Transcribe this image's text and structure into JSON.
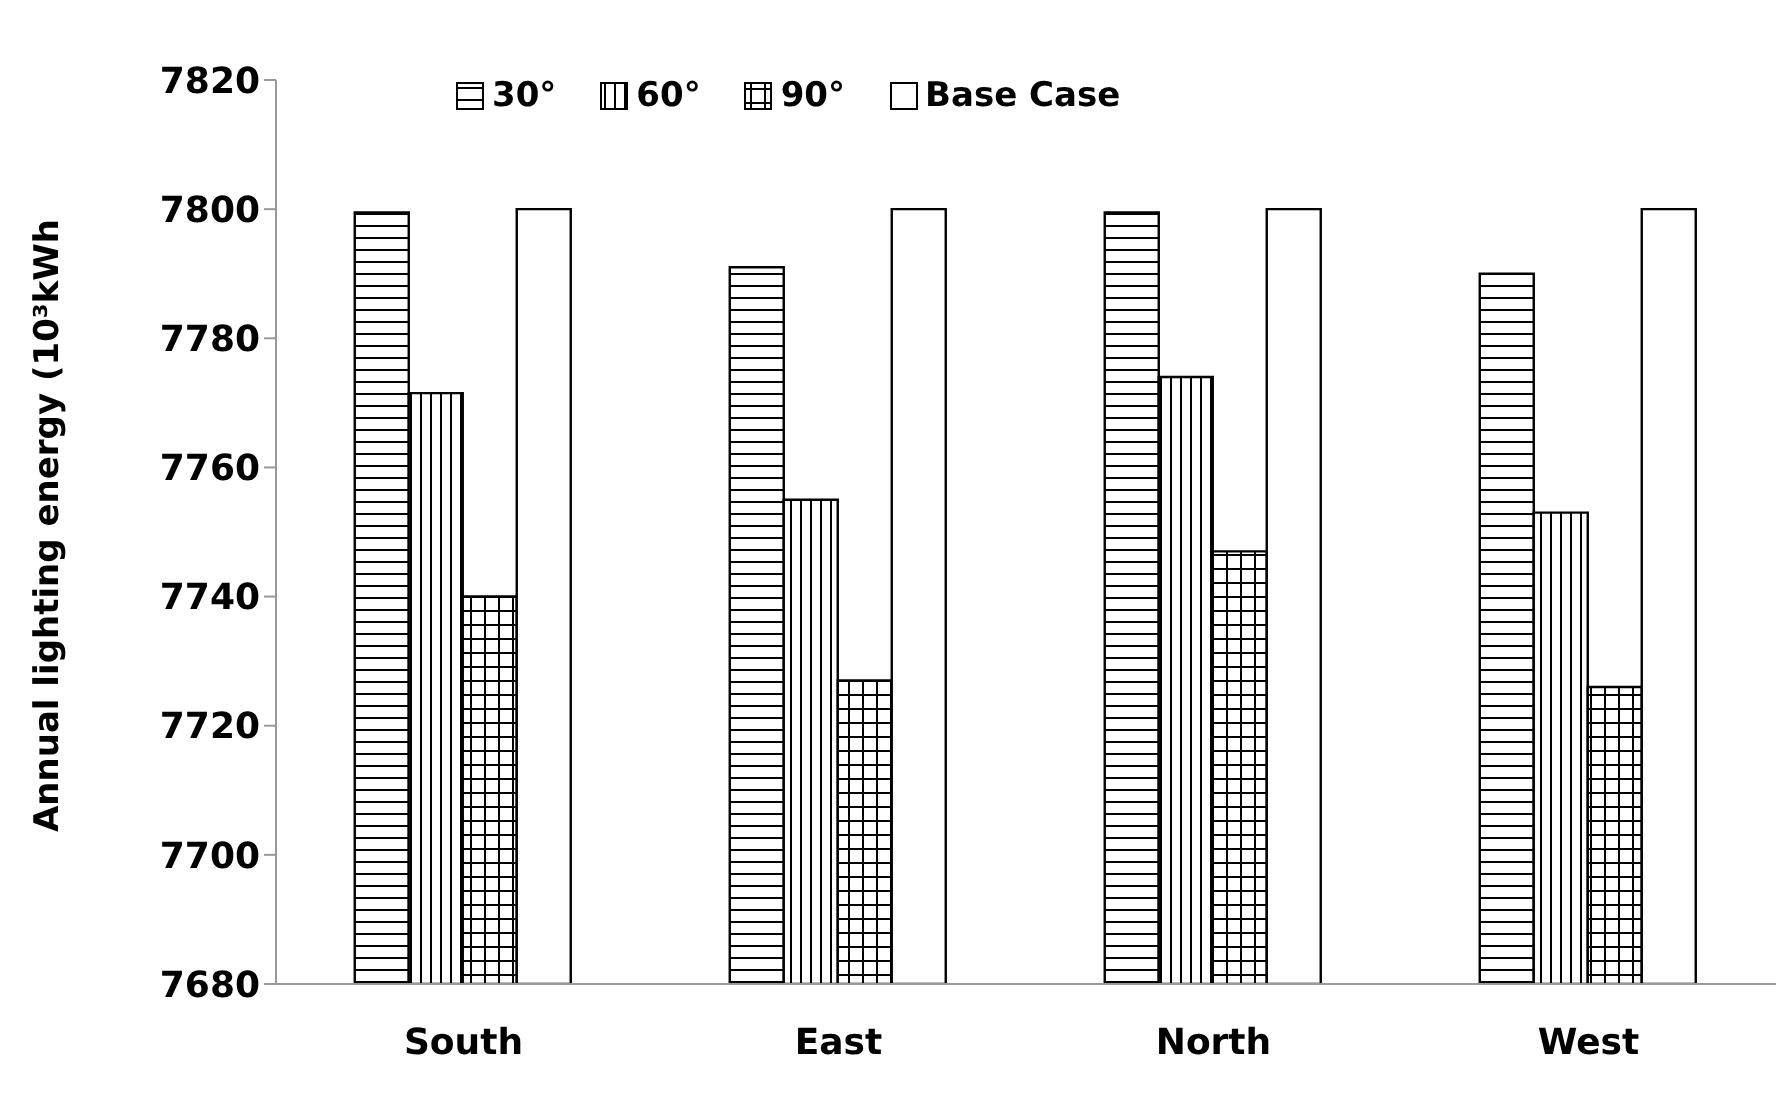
{
  "chart_data": {
    "type": "bar",
    "ylabel": "Annual lighting energy (10³kWh",
    "categories": [
      "South",
      "East",
      "North",
      "West"
    ],
    "series": [
      {
        "name": "30°",
        "color": "#000000",
        "values": [
          7799.5,
          7791,
          7799.5,
          7790
        ]
      },
      {
        "name": "60°",
        "color": "#000000",
        "values": [
          7771.5,
          7755,
          7774,
          7753
        ]
      },
      {
        "name": "90°",
        "color": "#000000",
        "values": [
          7740,
          7727,
          7747,
          7726
        ]
      },
      {
        "name": "Base Case",
        "color": "#000000",
        "values": [
          7800,
          7800,
          7800,
          7800
        ]
      }
    ],
    "ylim": [
      7680,
      7820
    ],
    "yticks": [
      7680,
      7700,
      7720,
      7740,
      7760,
      7780,
      7800,
      7820
    ],
    "grid": false,
    "legend": "top"
  }
}
